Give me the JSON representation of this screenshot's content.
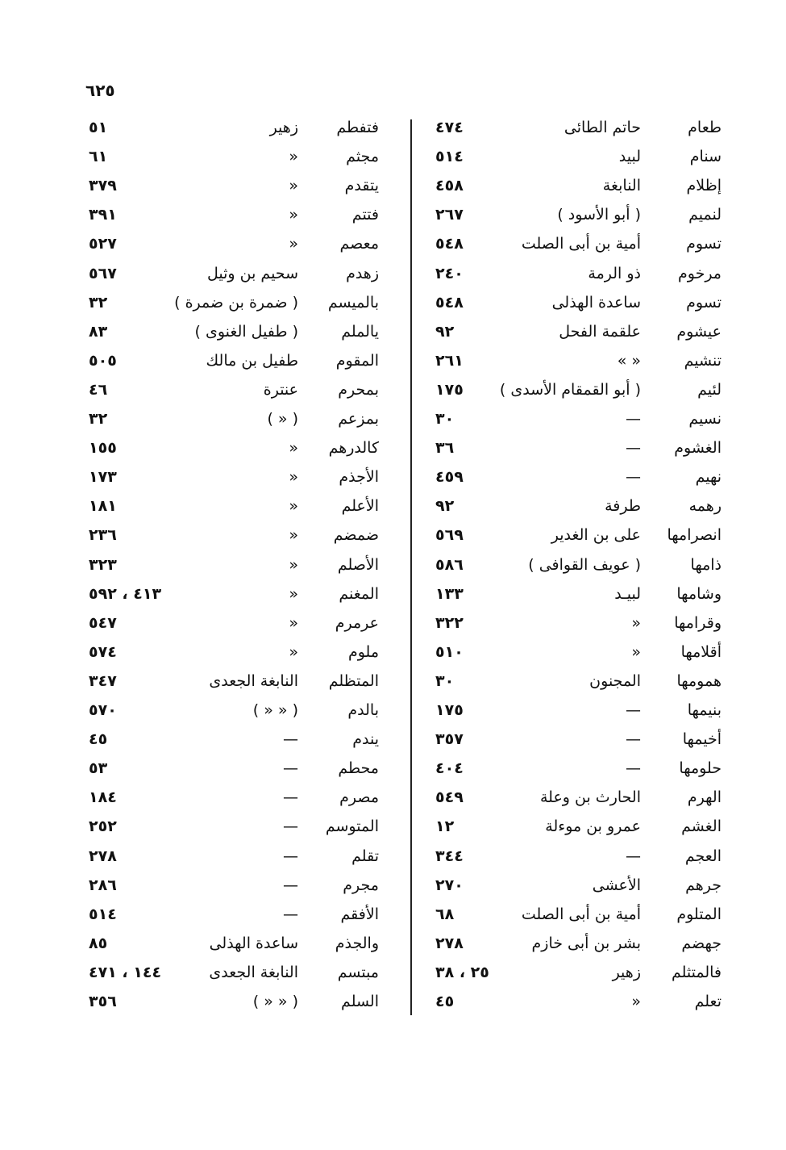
{
  "page_number": "٦٢٥",
  "columns": [
    {
      "rows": [
        [
          "طعام",
          "حاتم الطائى",
          "٤٧٤"
        ],
        [
          "سنام",
          "لبيد",
          "٥١٤"
        ],
        [
          "إظلام",
          "النابغة",
          "٤٥٨"
        ],
        [
          "لنميم",
          "( أبو الأسود )",
          "٢٦٧"
        ],
        [
          "تسوم",
          "أمية بن أبى الصلت",
          "٥٤٨"
        ],
        [
          "مرخوم",
          "ذو الرمة",
          "٢٤٠"
        ],
        [
          "تسوم",
          "ساعدة الهذلى",
          "٥٤٨"
        ],
        [
          "عيشوم",
          "علقمة الفحل",
          "٩٢"
        ],
        [
          "تنشيم",
          "« »",
          "٢٦١"
        ],
        [
          "لئيم",
          "( أبو القمقام الأسدى )",
          "١٧٥"
        ],
        [
          "نسيم",
          "—",
          "٣٠"
        ],
        [
          "الغشوم",
          "—",
          "٣٦"
        ],
        [
          "نهيم",
          "—",
          "٤٥٩"
        ],
        [
          "رهمه",
          "طرفة",
          "٩٢"
        ],
        [
          "انصرامها",
          "على بن الغدير",
          "٥٦٩"
        ],
        [
          "ذامها",
          "( عويف القوافى )",
          "٥٨٦"
        ],
        [
          "وشامها",
          "لبيـد",
          "١٣٣"
        ],
        [
          "وقرامها",
          "«",
          "٣٢٢"
        ],
        [
          "أقلامها",
          "«",
          "٥١٠"
        ],
        [
          "همومها",
          "المجنون",
          "٣٠"
        ],
        [
          "بنيمها",
          "—",
          "١٧٥"
        ],
        [
          "أخيمها",
          "—",
          "٣٥٧"
        ],
        [
          "حلومها",
          "—",
          "٤٠٤"
        ],
        [
          "الهرم",
          "الحارث بن وعلة",
          "٥٤٩"
        ],
        [
          "الغشم",
          "عمرو بن موءلة",
          "١٢"
        ],
        [
          "العجم",
          "—",
          "٣٤٤"
        ],
        [
          "جرهم",
          "الأعشى",
          "٢٧٠"
        ],
        [
          "المتلوم",
          "أمية بن أبى الصلت",
          "٦٨"
        ],
        [
          "جهضم",
          "بشر بن أبى خازم",
          "٢٧٨"
        ],
        [
          "فالمتثلم",
          "زهير",
          "٢٥ ، ٣٨"
        ],
        [
          "تعلم",
          "«",
          "٤٥"
        ]
      ]
    },
    {
      "rows": [
        [
          "فتفطم",
          "زهير",
          "٥١"
        ],
        [
          "مجثم",
          "«",
          "٦١"
        ],
        [
          "يتقدم",
          "«",
          "٣٧٩"
        ],
        [
          "فتتم",
          "«",
          "٣٩١"
        ],
        [
          "معصم",
          "«",
          "٥٢٧"
        ],
        [
          "زهدم",
          "سحيم بن وثيل",
          "٥٦٧"
        ],
        [
          "بالميسم",
          "( ضمرة بن ضمرة )",
          "٣٢"
        ],
        [
          "يالملم",
          "( طفيل الغنوى )",
          "٨٣"
        ],
        [
          "المقوم",
          "طفيل بن مالك",
          "٥٠٥"
        ],
        [
          "بمحرم",
          "عنترة",
          "٤٦"
        ],
        [
          "بمزعم",
          "( « )",
          "٣٢"
        ],
        [
          "كالدرهم",
          "«",
          "١٥٥"
        ],
        [
          "الأجذم",
          "«",
          "١٧٣"
        ],
        [
          "الأعلم",
          "«",
          "١٨١"
        ],
        [
          "ضمضم",
          "«",
          "٢٣٦"
        ],
        [
          "الأصلم",
          "«",
          "٣٢٣"
        ],
        [
          "المغنم",
          "«",
          "٤١٣ ، ٥٩٢"
        ],
        [
          "عرمرم",
          "«",
          "٥٤٧"
        ],
        [
          "ملوم",
          "«",
          "٥٧٤"
        ],
        [
          "المتظلم",
          "النابغة الجعدى",
          "٣٤٧"
        ],
        [
          "بالدم",
          "( « « )",
          "٥٧٠"
        ],
        [
          "يندم",
          "—",
          "٤٥"
        ],
        [
          "محطم",
          "—",
          "٥٣"
        ],
        [
          "مصرم",
          "—",
          "١٨٤"
        ],
        [
          "المتوسم",
          "—",
          "٢٥٢"
        ],
        [
          "تقلم",
          "—",
          "٢٧٨"
        ],
        [
          "مجرم",
          "—",
          "٢٨٦"
        ],
        [
          "الأفقم",
          "—",
          "٥١٤"
        ],
        [
          "والجذم",
          "ساعدة الهذلى",
          "٨٥"
        ],
        [
          "مبتسم",
          "النابغة الجعدى",
          "١٤٤ ، ٤٧١"
        ],
        [
          "السلم",
          "( « « )",
          "٣٥٦"
        ]
      ]
    }
  ]
}
